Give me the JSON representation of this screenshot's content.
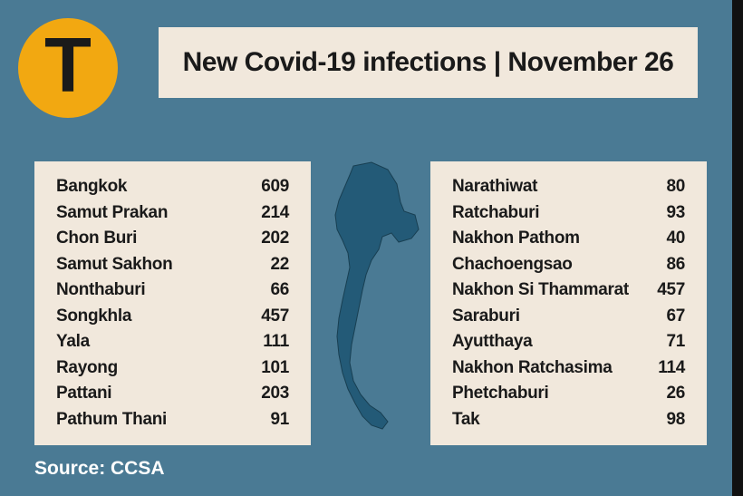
{
  "title": "New Covid-19 infections | November 26",
  "logo_letter": "T",
  "logo_bg": "#f2a811",
  "logo_fg": "#1a1a1a",
  "box_bg": "#f1e8dc",
  "page_bg": "#4a7a94",
  "text_color": "#1a1a1a",
  "source_label": "Source: CCSA",
  "table_left": [
    {
      "province": "Bangkok",
      "value": 609
    },
    {
      "province": "Samut Prakan",
      "value": 214
    },
    {
      "province": "Chon Buri",
      "value": 202
    },
    {
      "province": "Samut Sakhon",
      "value": 22
    },
    {
      "province": "Nonthaburi",
      "value": 66
    },
    {
      "province": "Songkhla",
      "value": 457
    },
    {
      "province": "Yala",
      "value": 111
    },
    {
      "province": "Rayong",
      "value": 101
    },
    {
      "province": "Pattani",
      "value": 203
    },
    {
      "province": "Pathum Thani",
      "value": 91
    }
  ],
  "table_right": [
    {
      "province": "Narathiwat",
      "value": 80
    },
    {
      "province": "Ratchaburi",
      "value": 93
    },
    {
      "province": "Nakhon Pathom",
      "value": 40
    },
    {
      "province": "Chachoengsao",
      "value": 86
    },
    {
      "province": "Nakhon Si Thammarat",
      "value": 457
    },
    {
      "province": "Saraburi",
      "value": 67
    },
    {
      "province": "Ayutthaya",
      "value": 71
    },
    {
      "province": "Nakhon Ratchasima",
      "value": 114
    },
    {
      "province": "Phetchaburi",
      "value": 26
    },
    {
      "province": "Tak",
      "value": 98
    }
  ],
  "map_fill": "#235a77",
  "map_stroke": "#183f52"
}
